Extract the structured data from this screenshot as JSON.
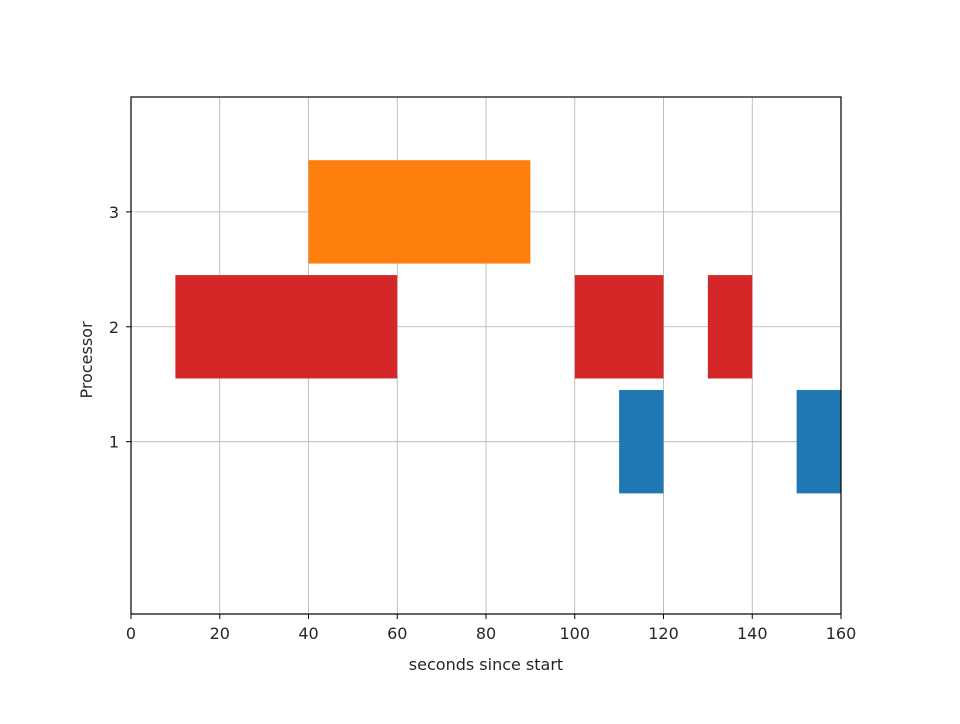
{
  "chart_data": {
    "type": "gantt",
    "xlabel": "seconds since start",
    "ylabel": "Processor",
    "xlim": [
      0,
      160
    ],
    "ylim": [
      -0.5,
      4.0
    ],
    "x_ticks": [
      0,
      20,
      40,
      60,
      80,
      100,
      120,
      140,
      160
    ],
    "y_ticks": [
      1,
      2,
      3
    ],
    "grid": true,
    "bar_half_height": 0.45,
    "bars": [
      {
        "processor": 2,
        "start": 10,
        "end": 60,
        "color": "#d62728"
      },
      {
        "processor": 3,
        "start": 40,
        "end": 90,
        "color": "#ff7f0e"
      },
      {
        "processor": 2,
        "start": 100,
        "end": 120,
        "color": "#d62728"
      },
      {
        "processor": 1,
        "start": 110,
        "end": 120,
        "color": "#1f77b4"
      },
      {
        "processor": 2,
        "start": 130,
        "end": 140,
        "color": "#d62728"
      },
      {
        "processor": 1,
        "start": 150,
        "end": 160,
        "color": "#1f77b4"
      }
    ]
  }
}
